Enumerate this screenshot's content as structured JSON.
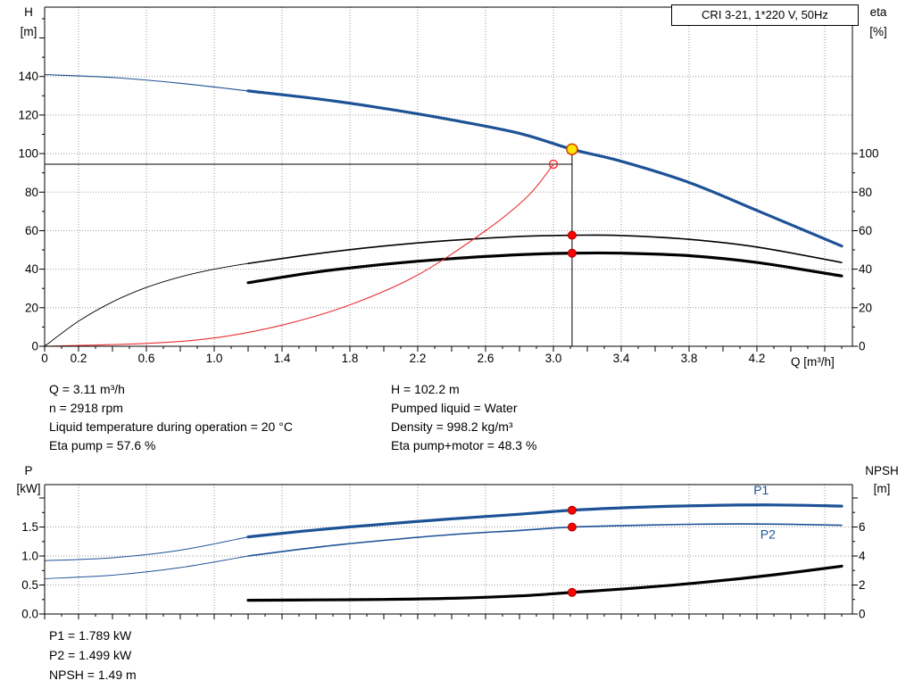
{
  "title_box": "CRI 3-21, 1*220 V, 50Hz",
  "colors": {
    "blue": "#1d5296",
    "black": "#000000",
    "red": "#e93030",
    "dot_red": "#ff0000",
    "dot_yellow": "#ffe600",
    "grid": "#9a9a9a"
  },
  "info": {
    "top_left": [
      "Q = 3.11 m³/h",
      "n = 2918 rpm",
      "Liquid temperature during operation = 20 °C",
      "Eta pump = 57.6 %"
    ],
    "top_right": [
      "H = 102.2 m",
      "Pumped liquid = Water",
      "Density = 998.2 kg/m³",
      "Eta pump+motor = 48.3 %"
    ],
    "bottom": [
      "P1 = 1.789 kW",
      "P2 = 1.499 kW",
      "NPSH = 1.49 m"
    ]
  },
  "chart_data": [
    {
      "id": "hq",
      "type": "line",
      "title": "CRI 3-21, 1*220 V, 50Hz",
      "x_axis": {
        "label": "Q [m³/h]",
        "min": 0,
        "max": 4.763,
        "minor_step": 0.1,
        "major_step": 0.2,
        "ticks": [
          {
            "v": 0,
            "t": "0"
          },
          {
            "v": 0.2,
            "t": "0.2"
          },
          {
            "v": 0.6,
            "t": "0.6"
          },
          {
            "v": 1.0,
            "t": "1.0"
          },
          {
            "v": 1.4,
            "t": "1.4"
          },
          {
            "v": 1.8,
            "t": "1.8"
          },
          {
            "v": 2.2,
            "t": "2.2"
          },
          {
            "v": 2.6,
            "t": "2.6"
          },
          {
            "v": 3.0,
            "t": "3.0"
          },
          {
            "v": 3.4,
            "t": "3.4"
          },
          {
            "v": 3.8,
            "t": "3.8"
          },
          {
            "v": 4.2,
            "t": "4.2"
          }
        ],
        "grid_ticks": [
          0.2,
          0.6,
          1.0,
          1.4,
          1.8,
          2.2,
          2.6,
          3.0,
          3.4,
          3.8,
          4.2,
          4.6
        ]
      },
      "left_axis": {
        "title": [
          "H",
          "[m]"
        ],
        "min": 0,
        "max": 176,
        "minor_step": 10,
        "major_step": 20,
        "ticks": [
          {
            "v": 0,
            "t": "0"
          },
          {
            "v": 20,
            "t": "20"
          },
          {
            "v": 40,
            "t": "40"
          },
          {
            "v": 60,
            "t": "60"
          },
          {
            "v": 80,
            "t": "80"
          },
          {
            "v": 100,
            "t": "100"
          },
          {
            "v": 120,
            "t": "120"
          },
          {
            "v": 140,
            "t": "140"
          }
        ],
        "grid_lines": [
          20,
          40,
          60,
          80,
          100,
          120,
          140
        ]
      },
      "right_axis": {
        "title": [
          "eta",
          "[%]"
        ],
        "min": 0,
        "max": 176,
        "tick_max": 100,
        "minor_step": 10,
        "major_step": 20,
        "ticks": [
          {
            "v": 0,
            "t": "0"
          },
          {
            "v": 20,
            "t": "20"
          },
          {
            "v": 40,
            "t": "40"
          },
          {
            "v": 60,
            "t": "60"
          },
          {
            "v": 80,
            "t": "80"
          },
          {
            "v": 100,
            "t": "100"
          }
        ]
      },
      "series": [
        {
          "name": "hq-curve-extension",
          "axis": "left",
          "color": "blue",
          "width": 1.1,
          "points": [
            [
              0,
              141
            ],
            [
              0.4,
              139.5
            ],
            [
              0.8,
              136.5
            ],
            [
              1.2,
              132.5
            ]
          ]
        },
        {
          "name": "hq-curve",
          "axis": "left",
          "color": "blue",
          "width": 3.2,
          "points": [
            [
              1.2,
              132.5
            ],
            [
              1.6,
              128.5
            ],
            [
              2.0,
              123.5
            ],
            [
              2.4,
              117.5
            ],
            [
              2.8,
              110.5
            ],
            [
              3.11,
              102.2
            ],
            [
              3.4,
              96
            ],
            [
              3.8,
              85
            ],
            [
              4.2,
              70.5
            ],
            [
              4.7,
              52
            ]
          ]
        },
        {
          "name": "eta-pump-extension",
          "axis": "right",
          "color": "black",
          "width": 0.9,
          "points": [
            [
              0,
              0
            ],
            [
              0.2,
              13
            ],
            [
              0.4,
              23
            ],
            [
              0.6,
              30.5
            ],
            [
              0.8,
              36
            ],
            [
              1.0,
              40
            ],
            [
              1.2,
              43
            ]
          ]
        },
        {
          "name": "eta-pump-curve",
          "axis": "right",
          "color": "black",
          "width": 1.6,
          "points": [
            [
              1.2,
              43
            ],
            [
              1.6,
              48
            ],
            [
              2.0,
              52
            ],
            [
              2.4,
              55
            ],
            [
              2.8,
              57
            ],
            [
              3.11,
              57.6
            ],
            [
              3.4,
              57.5
            ],
            [
              3.8,
              55.5
            ],
            [
              4.2,
              51.5
            ],
            [
              4.7,
              43.5
            ]
          ]
        },
        {
          "name": "eta-pump-motor-curve",
          "axis": "right",
          "color": "black",
          "width": 3.2,
          "points": [
            [
              1.2,
              33
            ],
            [
              1.6,
              38.5
            ],
            [
              2.0,
              42.5
            ],
            [
              2.4,
              45.5
            ],
            [
              2.8,
              47.5
            ],
            [
              3.11,
              48.3
            ],
            [
              3.4,
              48.3
            ],
            [
              3.8,
              47
            ],
            [
              4.2,
              43.5
            ],
            [
              4.7,
              36.5
            ]
          ]
        },
        {
          "name": "system-curve",
          "axis": "left",
          "color": "red",
          "width": 1.1,
          "points": [
            [
              0,
              0
            ],
            [
              0.6,
              1.5
            ],
            [
              1.0,
              4.3
            ],
            [
              1.4,
              11
            ],
            [
              1.8,
              21.5
            ],
            [
              2.2,
              37
            ],
            [
              2.6,
              60
            ],
            [
              2.85,
              78
            ],
            [
              3.0,
              94.5
            ]
          ]
        }
      ],
      "crosshair": {
        "h_value": 94.5,
        "h_from": 0,
        "h_to": 3.11,
        "v_value": 3.11,
        "v_from": 102.2,
        "v_to": 0
      },
      "markers": [
        {
          "name": "requested-duty-point",
          "x": 3.0,
          "y": 94.5,
          "axis": "left",
          "style": "open-red",
          "r": 4.5
        },
        {
          "name": "duty-point",
          "x": 3.11,
          "y": 102.2,
          "axis": "left",
          "style": "yellow",
          "r": 6
        },
        {
          "name": "eta-pump-point",
          "x": 3.11,
          "y": 57.6,
          "axis": "right",
          "style": "red",
          "r": 4.5
        },
        {
          "name": "eta-pump-motor-point",
          "x": 3.11,
          "y": 48.3,
          "axis": "right",
          "style": "red",
          "r": 4.5
        }
      ]
    },
    {
      "id": "power",
      "type": "line",
      "x_axis": {
        "label": "",
        "min": 0,
        "max": 4.763,
        "minor_step": 0.1,
        "major_step": 0.2,
        "ticks": [],
        "grid_ticks": [
          0.2,
          0.6,
          1.0,
          1.4,
          1.8,
          2.2,
          2.6,
          3.0,
          3.4,
          3.8,
          4.2,
          4.6
        ]
      },
      "left_axis": {
        "title": [
          "P",
          "[kW]"
        ],
        "min": 0,
        "max": 2.231,
        "minor_step": 0.25,
        "major_step": 0.5,
        "ticks": [
          {
            "v": 0,
            "t": "0.0"
          },
          {
            "v": 0.5,
            "t": "0.5"
          },
          {
            "v": 1.0,
            "t": "1.0"
          },
          {
            "v": 1.5,
            "t": "1.5"
          }
        ],
        "grid_lines": [
          0.5,
          1.0,
          1.5
        ]
      },
      "right_axis": {
        "title": [
          "NPSH",
          "[m]"
        ],
        "min": 0,
        "max": 8.92,
        "minor_step": 1,
        "major_step": 2,
        "ticks": [
          {
            "v": 0,
            "t": "0"
          },
          {
            "v": 2,
            "t": "2"
          },
          {
            "v": 4,
            "t": "4"
          },
          {
            "v": 6,
            "t": "6"
          }
        ]
      },
      "series": [
        {
          "name": "p1-curve-extension",
          "axis": "left",
          "color": "blue",
          "width": 1.0,
          "points": [
            [
              0,
              0.92
            ],
            [
              0.4,
              0.97
            ],
            [
              0.8,
              1.1
            ],
            [
              1.2,
              1.33
            ]
          ]
        },
        {
          "name": "p1-curve",
          "axis": "left",
          "color": "blue",
          "width": 3.2,
          "points": [
            [
              1.2,
              1.33
            ],
            [
              1.6,
              1.45
            ],
            [
              2.0,
              1.55
            ],
            [
              2.4,
              1.64
            ],
            [
              2.8,
              1.72
            ],
            [
              3.11,
              1.789
            ],
            [
              3.5,
              1.84
            ],
            [
              3.9,
              1.87
            ],
            [
              4.3,
              1.88
            ],
            [
              4.7,
              1.86
            ]
          ]
        },
        {
          "name": "p2-curve-extension",
          "axis": "left",
          "color": "blue",
          "width": 0.9,
          "points": [
            [
              0,
              0.61
            ],
            [
              0.4,
              0.67
            ],
            [
              0.8,
              0.8
            ],
            [
              1.2,
              1.0
            ]
          ]
        },
        {
          "name": "p2-curve",
          "axis": "left",
          "color": "blue",
          "width": 1.6,
          "points": [
            [
              1.2,
              1.0
            ],
            [
              1.6,
              1.15
            ],
            [
              2.0,
              1.27
            ],
            [
              2.4,
              1.37
            ],
            [
              2.8,
              1.44
            ],
            [
              3.11,
              1.499
            ],
            [
              3.5,
              1.53
            ],
            [
              3.9,
              1.55
            ],
            [
              4.3,
              1.55
            ],
            [
              4.7,
              1.53
            ]
          ]
        },
        {
          "name": "npsh-curve",
          "axis": "right",
          "color": "black",
          "width": 3.2,
          "points": [
            [
              1.2,
              0.95
            ],
            [
              1.6,
              0.97
            ],
            [
              2.0,
              1.0
            ],
            [
              2.4,
              1.08
            ],
            [
              2.8,
              1.25
            ],
            [
              3.11,
              1.49
            ],
            [
              3.5,
              1.8
            ],
            [
              3.9,
              2.2
            ],
            [
              4.3,
              2.7
            ],
            [
              4.7,
              3.3
            ]
          ]
        }
      ],
      "markers": [
        {
          "name": "p1-point",
          "x": 3.11,
          "y": 1.789,
          "axis": "left",
          "style": "red",
          "r": 4.5
        },
        {
          "name": "p2-point",
          "x": 3.11,
          "y": 1.499,
          "axis": "left",
          "style": "red",
          "r": 4.5
        },
        {
          "name": "npsh-point",
          "x": 3.11,
          "y": 1.49,
          "axis": "right",
          "style": "red",
          "r": 4.5
        }
      ],
      "curve_labels": [
        {
          "text": "P1",
          "x": 4.18,
          "y": 2.06,
          "axis": "left"
        },
        {
          "text": "P2",
          "x": 4.22,
          "y": 1.3,
          "axis": "left"
        }
      ]
    }
  ]
}
